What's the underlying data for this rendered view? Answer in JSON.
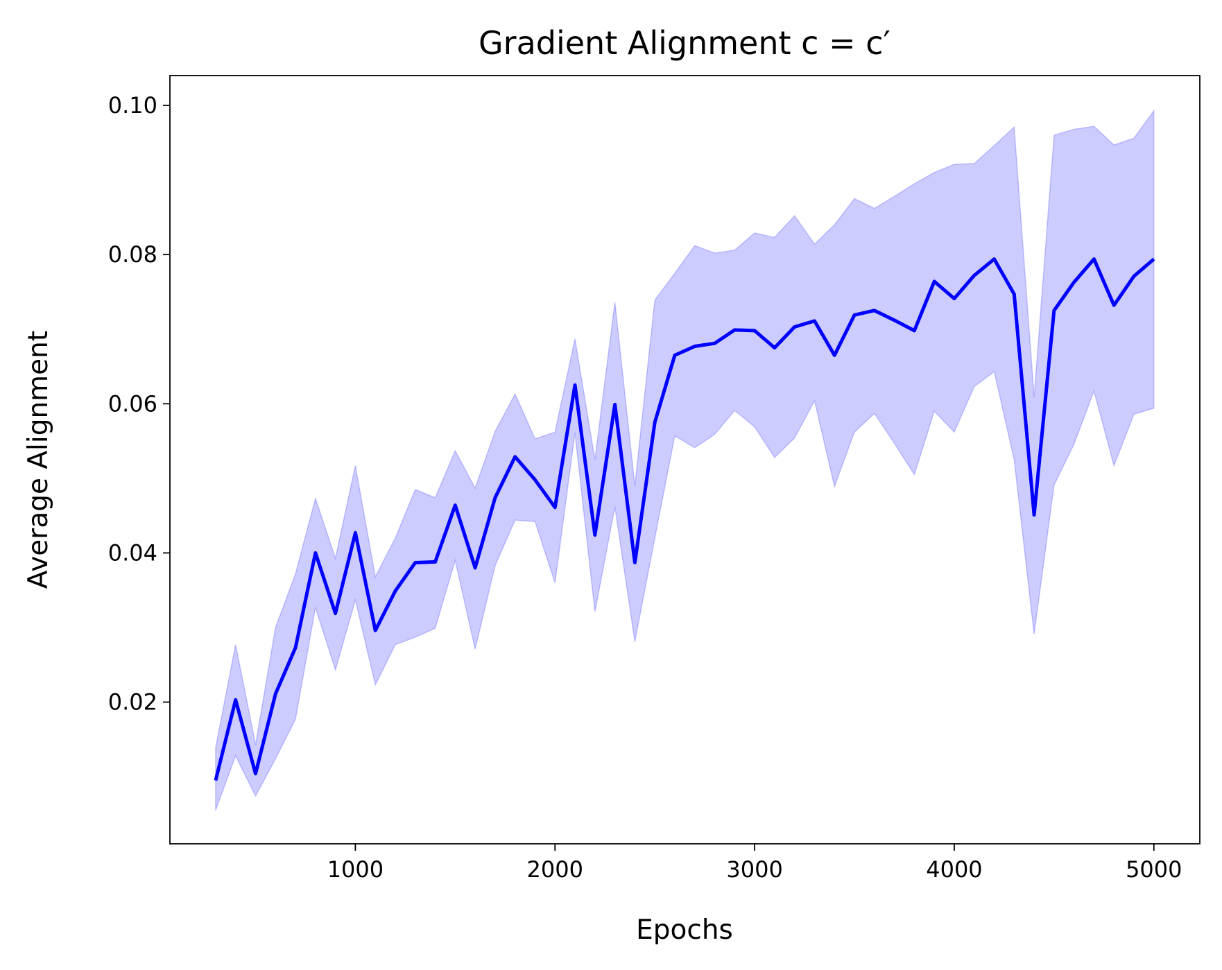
{
  "chart_data": {
    "type": "line",
    "title": "Gradient Alignment c = c′",
    "xlabel": "Epochs",
    "ylabel": "Average Alignment",
    "x": [
      300,
      400,
      500,
      600,
      700,
      800,
      900,
      1000,
      1100,
      1200,
      1300,
      1400,
      1500,
      1600,
      1700,
      1800,
      1900,
      2000,
      2100,
      2200,
      2300,
      2400,
      2500,
      2600,
      2700,
      2800,
      2900,
      3000,
      3100,
      3200,
      3300,
      3400,
      3500,
      3600,
      3700,
      3800,
      3900,
      4000,
      4100,
      4200,
      4300,
      4400,
      4500,
      4600,
      4700,
      4800,
      4900,
      5000
    ],
    "series": [
      {
        "color": "#0000ff",
        "band_color": "#0000ff",
        "values": [
          0.0095,
          0.0203,
          0.0104,
          0.0211,
          0.0273,
          0.04,
          0.0319,
          0.0427,
          0.0296,
          0.0349,
          0.0387,
          0.0388,
          0.0464,
          0.038,
          0.0474,
          0.0529,
          0.0498,
          0.0461,
          0.0625,
          0.0424,
          0.0599,
          0.0387,
          0.0575,
          0.0665,
          0.0677,
          0.0681,
          0.0699,
          0.0698,
          0.0675,
          0.0703,
          0.0711,
          0.0665,
          0.0719,
          0.0725,
          0.0712,
          0.0698,
          0.0764,
          0.0741,
          0.0772,
          0.0794,
          0.0747,
          0.0451,
          0.0725,
          0.0763,
          0.0794,
          0.0732,
          0.0771,
          0.0794
        ],
        "upper": [
          0.0139,
          0.0277,
          0.0143,
          0.03,
          0.0372,
          0.0473,
          0.0393,
          0.0517,
          0.0368,
          0.042,
          0.0485,
          0.0474,
          0.0537,
          0.0487,
          0.0563,
          0.0613,
          0.0553,
          0.0562,
          0.0687,
          0.0525,
          0.0736,
          0.049,
          0.0739,
          0.0775,
          0.0812,
          0.0802,
          0.0806,
          0.0829,
          0.0823,
          0.0852,
          0.0814,
          0.084,
          0.0875,
          0.0862,
          0.0878,
          0.0895,
          0.091,
          0.0921,
          0.0922,
          0.0946,
          0.0971,
          0.0609,
          0.096,
          0.0968,
          0.0972,
          0.0947,
          0.0956,
          0.0993
        ],
        "lower": [
          0.0055,
          0.0128,
          0.0074,
          0.0124,
          0.0177,
          0.0327,
          0.0243,
          0.0337,
          0.0223,
          0.0277,
          0.0287,
          0.0299,
          0.039,
          0.0271,
          0.0383,
          0.0444,
          0.0442,
          0.036,
          0.0561,
          0.0321,
          0.0462,
          0.0281,
          0.042,
          0.0557,
          0.0541,
          0.0559,
          0.0591,
          0.0569,
          0.0528,
          0.0554,
          0.0604,
          0.0489,
          0.0562,
          0.0587,
          0.0547,
          0.0505,
          0.059,
          0.0562,
          0.0623,
          0.0643,
          0.0525,
          0.0291,
          0.0491,
          0.0546,
          0.0617,
          0.0517,
          0.0586,
          0.0594
        ]
      }
    ],
    "xlim": [
      71,
      5230
    ],
    "xticks": [
      1000,
      2000,
      3000,
      4000,
      5000
    ],
    "ylim": [
      0.001,
      0.104
    ],
    "yticks": [
      {
        "value": 0.02,
        "label": "0.02"
      },
      {
        "value": 0.04,
        "label": "0.04"
      },
      {
        "value": 0.06,
        "label": "0.06"
      },
      {
        "value": 0.08,
        "label": "0.08"
      },
      {
        "value": 0.1,
        "label": "0.10"
      }
    ]
  }
}
